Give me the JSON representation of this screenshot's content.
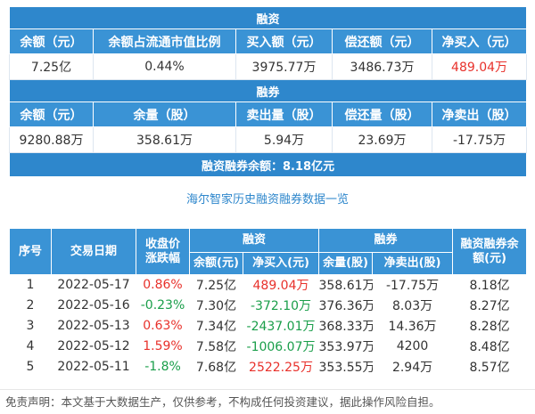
{
  "summary": {
    "margin_title": "融资",
    "margin_headers": [
      "余额（元）",
      "余额占流通市值比例",
      "买入额（元）",
      "偿还额（元）",
      "净买入（元）"
    ],
    "margin_values": [
      "7.25亿",
      "0.44%",
      "3975.77万",
      "3486.73万",
      "489.04万"
    ],
    "short_title": "融券",
    "short_headers": [
      "余额（元）",
      "余量（股）",
      "卖出量（股）",
      "偿还量（股）",
      "净卖出（股）"
    ],
    "short_values": [
      "9280.88万",
      "358.61万",
      "5.94万",
      "23.69万",
      "-17.75万"
    ],
    "total_label": "融资融券余额：",
    "total_value": "8.18亿元"
  },
  "history": {
    "title": "海尔智家历史融资融券数据一览",
    "headers": {
      "index": "序号",
      "date": "交易日期",
      "change": "收盘价涨跌幅",
      "margin_group": "融资",
      "short_group": "融券",
      "total": "融资融券余额(元)",
      "margin_balance": "余额(元)",
      "margin_net_buy": "净买入(元)",
      "short_quantity": "余量(股)",
      "short_net_sell": "净卖出(股)"
    },
    "rows": [
      {
        "index": "1",
        "date": "2022-05-17",
        "change": "0.86%",
        "change_dir": "up",
        "margin_balance": "7.25亿",
        "margin_net_buy": "489.04万",
        "net_dir": "up",
        "short_quantity": "358.61万",
        "short_net_sell": "-17.75万",
        "total": "8.18亿"
      },
      {
        "index": "2",
        "date": "2022-05-16",
        "change": "-0.23%",
        "change_dir": "down",
        "margin_balance": "7.30亿",
        "margin_net_buy": "-372.10万",
        "net_dir": "down",
        "short_quantity": "376.36万",
        "short_net_sell": "8.03万",
        "total": "8.27亿"
      },
      {
        "index": "3",
        "date": "2022-05-13",
        "change": "0.63%",
        "change_dir": "up",
        "margin_balance": "7.34亿",
        "margin_net_buy": "-2437.01万",
        "net_dir": "down",
        "short_quantity": "368.33万",
        "short_net_sell": "14.36万",
        "total": "8.28亿"
      },
      {
        "index": "4",
        "date": "2022-05-12",
        "change": "1.59%",
        "change_dir": "up",
        "margin_balance": "7.58亿",
        "margin_net_buy": "-1006.07万",
        "net_dir": "down",
        "short_quantity": "353.97万",
        "short_net_sell": "4200",
        "total": "8.48亿"
      },
      {
        "index": "5",
        "date": "2022-05-11",
        "change": "-1.8%",
        "change_dir": "down",
        "margin_balance": "7.68亿",
        "margin_net_buy": "2522.25万",
        "net_dir": "up",
        "short_quantity": "353.55万",
        "short_net_sell": "2.94万",
        "total": "8.57亿"
      }
    ]
  },
  "disclaimer": "免责声明：本文基于大数据生产，仅供参考，不构成任何投资建议，据此操作风险自担。",
  "colors": {
    "header_blue": "#3a93d5",
    "title_blue": "#2e87cc",
    "up_red": "#e8312b",
    "down_green": "#1a9e4a"
  }
}
